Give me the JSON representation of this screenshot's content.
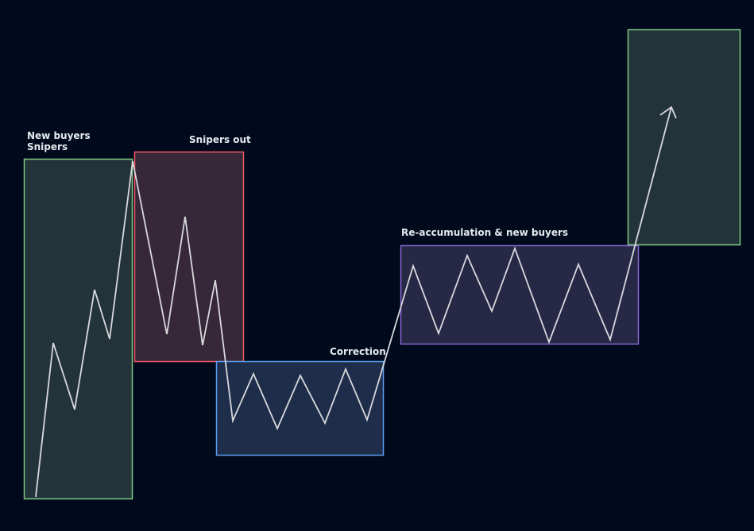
{
  "labels": {
    "new_buyers": "New buyers",
    "snipers": "Snipers",
    "snipers_out": "Snipers out",
    "correction": "Correction",
    "reaccumulation": "Re-accumulation & new buyers"
  },
  "colors": {
    "background": "#000a1c",
    "green": "#81c784",
    "red": "#f05a64",
    "blue": "#5b9cf0",
    "purple": "#8a66d6",
    "line": "#d8d8dc"
  }
}
